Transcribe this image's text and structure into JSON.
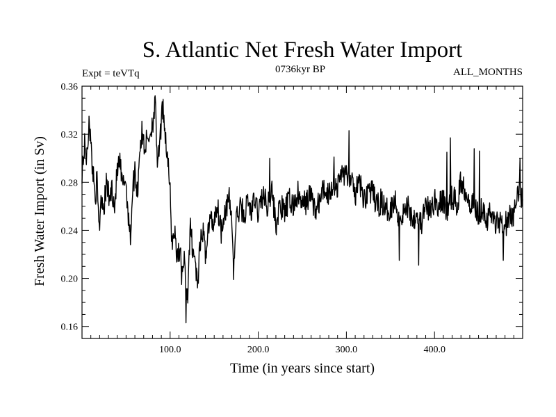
{
  "chart_data": {
    "type": "line",
    "title": "S. Atlantic Net Fresh Water Import",
    "subtitle": "0736kyr BP",
    "left_label": "Expt = teVTq",
    "right_label": "ALL_MONTHS",
    "xlabel": "Time (in years since start)",
    "ylabel": "Fresh Water Import (in Sv)",
    "xlim": [
      0,
      500
    ],
    "ylim": [
      0.15,
      0.36
    ],
    "x_ticks": [
      "100.0",
      "200.0",
      "300.0",
      "400.0"
    ],
    "y_ticks": [
      "0.16",
      "0.20",
      "0.24",
      "0.28",
      "0.32",
      "0.36"
    ],
    "grid": false,
    "series_color": "#000000",
    "anchors": [
      [
        0,
        0.29
      ],
      [
        3,
        0.31
      ],
      [
        6,
        0.3
      ],
      [
        8,
        0.335
      ],
      [
        11,
        0.3
      ],
      [
        15,
        0.27
      ],
      [
        17,
        0.28
      ],
      [
        19,
        0.245
      ],
      [
        22,
        0.27
      ],
      [
        25,
        0.26
      ],
      [
        28,
        0.28
      ],
      [
        31,
        0.265
      ],
      [
        34,
        0.275
      ],
      [
        37,
        0.26
      ],
      [
        40,
        0.29
      ],
      [
        43,
        0.295
      ],
      [
        46,
        0.275
      ],
      [
        49,
        0.285
      ],
      [
        52,
        0.26
      ],
      [
        55,
        0.23
      ],
      [
        57,
        0.27
      ],
      [
        60,
        0.29
      ],
      [
        63,
        0.27
      ],
      [
        65,
        0.305
      ],
      [
        68,
        0.32
      ],
      [
        71,
        0.31
      ],
      [
        74,
        0.315
      ],
      [
        77,
        0.32
      ],
      [
        80,
        0.33
      ],
      [
        83,
        0.345
      ],
      [
        86,
        0.29
      ],
      [
        89,
        0.32
      ],
      [
        92,
        0.345
      ],
      [
        95,
        0.315
      ],
      [
        97,
        0.3
      ],
      [
        100,
        0.27
      ],
      [
        102,
        0.23
      ],
      [
        105,
        0.24
      ],
      [
        108,
        0.22
      ],
      [
        111,
        0.225
      ],
      [
        113,
        0.205
      ],
      [
        116,
        0.215
      ],
      [
        118,
        0.185
      ],
      [
        120,
        0.19
      ],
      [
        123,
        0.24
      ],
      [
        126,
        0.225
      ],
      [
        129,
        0.21
      ],
      [
        131,
        0.195
      ],
      [
        134,
        0.225
      ],
      [
        137,
        0.24
      ],
      [
        140,
        0.22
      ],
      [
        143,
        0.24
      ],
      [
        146,
        0.25
      ],
      [
        149,
        0.245
      ],
      [
        152,
        0.26
      ],
      [
        155,
        0.255
      ],
      [
        158,
        0.24
      ],
      [
        161,
        0.255
      ],
      [
        164,
        0.26
      ],
      [
        167,
        0.265
      ],
      [
        170,
        0.25
      ],
      [
        172,
        0.205
      ],
      [
        175,
        0.25
      ],
      [
        178,
        0.255
      ],
      [
        181,
        0.26
      ],
      [
        184,
        0.25
      ],
      [
        188,
        0.265
      ],
      [
        192,
        0.255
      ],
      [
        196,
        0.265
      ],
      [
        200,
        0.255
      ],
      [
        205,
        0.27
      ],
      [
        210,
        0.26
      ],
      [
        215,
        0.275
      ],
      [
        220,
        0.245
      ],
      [
        225,
        0.26
      ],
      [
        230,
        0.255
      ],
      [
        235,
        0.265
      ],
      [
        240,
        0.26
      ],
      [
        245,
        0.27
      ],
      [
        250,
        0.26
      ],
      [
        255,
        0.265
      ],
      [
        260,
        0.27
      ],
      [
        265,
        0.255
      ],
      [
        270,
        0.265
      ],
      [
        275,
        0.275
      ],
      [
        280,
        0.27
      ],
      [
        285,
        0.28
      ],
      [
        290,
        0.275
      ],
      [
        295,
        0.29
      ],
      [
        300,
        0.285
      ],
      [
        305,
        0.28
      ],
      [
        310,
        0.27
      ],
      [
        315,
        0.28
      ],
      [
        320,
        0.265
      ],
      [
        325,
        0.275
      ],
      [
        330,
        0.27
      ],
      [
        335,
        0.26
      ],
      [
        340,
        0.265
      ],
      [
        345,
        0.255
      ],
      [
        350,
        0.26
      ],
      [
        355,
        0.265
      ],
      [
        360,
        0.25
      ],
      [
        365,
        0.255
      ],
      [
        370,
        0.26
      ],
      [
        375,
        0.25
      ],
      [
        380,
        0.255
      ],
      [
        385,
        0.245
      ],
      [
        390,
        0.26
      ],
      [
        395,
        0.255
      ],
      [
        400,
        0.265
      ],
      [
        405,
        0.26
      ],
      [
        410,
        0.265
      ],
      [
        415,
        0.255
      ],
      [
        420,
        0.27
      ],
      [
        425,
        0.26
      ],
      [
        430,
        0.28
      ],
      [
        435,
        0.275
      ],
      [
        440,
        0.265
      ],
      [
        445,
        0.26
      ],
      [
        450,
        0.255
      ],
      [
        455,
        0.26
      ],
      [
        460,
        0.25
      ],
      [
        465,
        0.255
      ],
      [
        470,
        0.245
      ],
      [
        475,
        0.25
      ],
      [
        480,
        0.245
      ],
      [
        485,
        0.25
      ],
      [
        490,
        0.255
      ],
      [
        493,
        0.26
      ],
      [
        496,
        0.275
      ],
      [
        498,
        0.27
      ],
      [
        500,
        0.265
      ]
    ],
    "spikes": [
      [
        8,
        0.335
      ],
      [
        20,
        0.24
      ],
      [
        55,
        0.228
      ],
      [
        83,
        0.352
      ],
      [
        92,
        0.349
      ],
      [
        107,
        0.218
      ],
      [
        118,
        0.163
      ],
      [
        131,
        0.192
      ],
      [
        172,
        0.199
      ],
      [
        213,
        0.3
      ],
      [
        286,
        0.301
      ],
      [
        303,
        0.323
      ],
      [
        360,
        0.215
      ],
      [
        382,
        0.211
      ],
      [
        414,
        0.305
      ],
      [
        418,
        0.317
      ],
      [
        445,
        0.308
      ],
      [
        451,
        0.306
      ],
      [
        478,
        0.215
      ],
      [
        497,
        0.3
      ]
    ],
    "noise_amplitude": 0.011,
    "n_samples": 1000
  }
}
